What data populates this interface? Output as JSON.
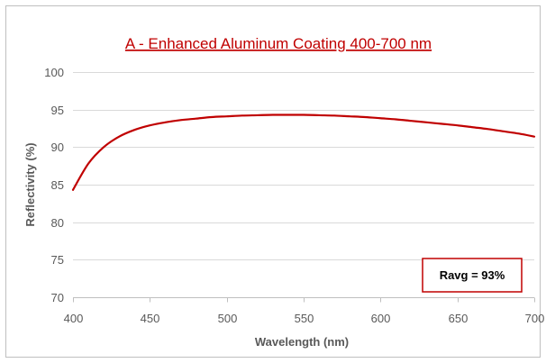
{
  "chart_data": {
    "type": "line",
    "title": "A - Enhanced Aluminum Coating 400-700 nm",
    "xlabel": "Wavelength (nm)",
    "ylabel": "Reflectivity (%)",
    "xlim": [
      400,
      700
    ],
    "ylim": [
      70,
      100
    ],
    "xticks": [
      400,
      450,
      500,
      550,
      600,
      650,
      700
    ],
    "yticks": [
      70,
      75,
      80,
      85,
      90,
      95,
      100
    ],
    "grid": true,
    "legend": "none",
    "series": [
      {
        "color": "#C00000",
        "x": [
          400,
          410,
          420,
          430,
          440,
          450,
          460,
          470,
          480,
          490,
          500,
          510,
          520,
          530,
          540,
          550,
          560,
          570,
          580,
          590,
          600,
          610,
          620,
          630,
          640,
          650,
          660,
          670,
          680,
          690,
          700
        ],
        "y": [
          84.3,
          87.8,
          90.0,
          91.4,
          92.3,
          92.9,
          93.3,
          93.6,
          93.8,
          94.0,
          94.1,
          94.2,
          94.25,
          94.3,
          94.3,
          94.3,
          94.25,
          94.2,
          94.1,
          94.0,
          93.85,
          93.7,
          93.5,
          93.3,
          93.1,
          92.9,
          92.65,
          92.4,
          92.1,
          91.8,
          91.4
        ]
      }
    ],
    "annotation": "Ravg = 93%"
  },
  "colors": {
    "title": "#C00000",
    "line": "#C00000",
    "annotation_border": "#C00000",
    "grid": "#D9D9D9",
    "frame": "#BFBFBF",
    "text": "#595959"
  }
}
